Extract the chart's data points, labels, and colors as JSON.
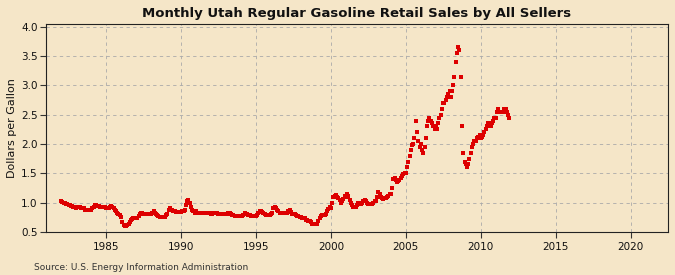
{
  "title": "Monthly Utah Regular Gasoline Retail Sales by All Sellers",
  "ylabel": "Dollars per Gallon",
  "source_text": "Source: U.S. Energy Information Administration",
  "xlim": [
    1981.0,
    2022.5
  ],
  "ylim": [
    0.5,
    4.05
  ],
  "yticks": [
    0.5,
    1.0,
    1.5,
    2.0,
    2.5,
    3.0,
    3.5,
    4.0
  ],
  "xticks": [
    1985,
    1990,
    1995,
    2000,
    2005,
    2010,
    2015,
    2020
  ],
  "background_color": "#f5e6c8",
  "plot_bg_color": "#f5e6c8",
  "marker_color": "#dd0000",
  "data_points": [
    [
      1982.0,
      1.02
    ],
    [
      1982.08,
      1.01
    ],
    [
      1982.17,
      1.0
    ],
    [
      1982.25,
      0.99
    ],
    [
      1982.33,
      0.98
    ],
    [
      1982.42,
      0.97
    ],
    [
      1982.5,
      0.96
    ],
    [
      1982.58,
      0.95
    ],
    [
      1982.67,
      0.94
    ],
    [
      1982.75,
      0.94
    ],
    [
      1982.83,
      0.93
    ],
    [
      1982.92,
      0.92
    ],
    [
      1983.0,
      0.91
    ],
    [
      1983.08,
      0.92
    ],
    [
      1983.17,
      0.93
    ],
    [
      1983.25,
      0.93
    ],
    [
      1983.33,
      0.91
    ],
    [
      1983.42,
      0.9
    ],
    [
      1983.5,
      0.9
    ],
    [
      1983.58,
      0.88
    ],
    [
      1983.67,
      0.87
    ],
    [
      1983.75,
      0.87
    ],
    [
      1983.83,
      0.87
    ],
    [
      1983.92,
      0.87
    ],
    [
      1984.0,
      0.88
    ],
    [
      1984.08,
      0.9
    ],
    [
      1984.17,
      0.93
    ],
    [
      1984.25,
      0.95
    ],
    [
      1984.33,
      0.95
    ],
    [
      1984.42,
      0.94
    ],
    [
      1984.5,
      0.94
    ],
    [
      1984.58,
      0.93
    ],
    [
      1984.67,
      0.92
    ],
    [
      1984.75,
      0.92
    ],
    [
      1984.83,
      0.92
    ],
    [
      1984.92,
      0.92
    ],
    [
      1985.0,
      0.91
    ],
    [
      1985.08,
      0.9
    ],
    [
      1985.17,
      0.9
    ],
    [
      1985.25,
      0.92
    ],
    [
      1985.33,
      0.94
    ],
    [
      1985.42,
      0.93
    ],
    [
      1985.5,
      0.91
    ],
    [
      1985.58,
      0.88
    ],
    [
      1985.67,
      0.85
    ],
    [
      1985.75,
      0.82
    ],
    [
      1985.83,
      0.8
    ],
    [
      1985.92,
      0.79
    ],
    [
      1986.0,
      0.75
    ],
    [
      1986.08,
      0.66
    ],
    [
      1986.17,
      0.62
    ],
    [
      1986.25,
      0.6
    ],
    [
      1986.33,
      0.6
    ],
    [
      1986.42,
      0.62
    ],
    [
      1986.5,
      0.64
    ],
    [
      1986.58,
      0.67
    ],
    [
      1986.67,
      0.7
    ],
    [
      1986.75,
      0.72
    ],
    [
      1986.83,
      0.73
    ],
    [
      1986.92,
      0.74
    ],
    [
      1987.0,
      0.73
    ],
    [
      1987.08,
      0.74
    ],
    [
      1987.17,
      0.77
    ],
    [
      1987.25,
      0.8
    ],
    [
      1987.33,
      0.82
    ],
    [
      1987.42,
      0.82
    ],
    [
      1987.5,
      0.81
    ],
    [
      1987.58,
      0.8
    ],
    [
      1987.67,
      0.8
    ],
    [
      1987.75,
      0.8
    ],
    [
      1987.83,
      0.8
    ],
    [
      1987.92,
      0.8
    ],
    [
      1988.0,
      0.8
    ],
    [
      1988.08,
      0.82
    ],
    [
      1988.17,
      0.85
    ],
    [
      1988.25,
      0.83
    ],
    [
      1988.33,
      0.8
    ],
    [
      1988.42,
      0.78
    ],
    [
      1988.5,
      0.77
    ],
    [
      1988.58,
      0.76
    ],
    [
      1988.67,
      0.76
    ],
    [
      1988.75,
      0.76
    ],
    [
      1988.83,
      0.76
    ],
    [
      1988.92,
      0.76
    ],
    [
      1989.0,
      0.78
    ],
    [
      1989.08,
      0.8
    ],
    [
      1989.17,
      0.87
    ],
    [
      1989.25,
      0.9
    ],
    [
      1989.33,
      0.88
    ],
    [
      1989.42,
      0.87
    ],
    [
      1989.5,
      0.86
    ],
    [
      1989.58,
      0.85
    ],
    [
      1989.67,
      0.84
    ],
    [
      1989.75,
      0.84
    ],
    [
      1989.83,
      0.84
    ],
    [
      1989.92,
      0.84
    ],
    [
      1990.0,
      0.84
    ],
    [
      1990.08,
      0.85
    ],
    [
      1990.17,
      0.85
    ],
    [
      1990.25,
      0.88
    ],
    [
      1990.33,
      0.96
    ],
    [
      1990.42,
      1.03
    ],
    [
      1990.5,
      1.04
    ],
    [
      1990.58,
      1.0
    ],
    [
      1990.67,
      0.93
    ],
    [
      1990.75,
      0.88
    ],
    [
      1990.83,
      0.85
    ],
    [
      1990.92,
      0.83
    ],
    [
      1991.0,
      0.85
    ],
    [
      1991.08,
      0.83
    ],
    [
      1991.17,
      0.82
    ],
    [
      1991.25,
      0.83
    ],
    [
      1991.33,
      0.83
    ],
    [
      1991.42,
      0.83
    ],
    [
      1991.5,
      0.83
    ],
    [
      1991.58,
      0.82
    ],
    [
      1991.67,
      0.82
    ],
    [
      1991.75,
      0.82
    ],
    [
      1991.83,
      0.82
    ],
    [
      1991.92,
      0.82
    ],
    [
      1992.0,
      0.8
    ],
    [
      1992.08,
      0.8
    ],
    [
      1992.17,
      0.82
    ],
    [
      1992.25,
      0.83
    ],
    [
      1992.33,
      0.83
    ],
    [
      1992.42,
      0.82
    ],
    [
      1992.5,
      0.8
    ],
    [
      1992.58,
      0.8
    ],
    [
      1992.67,
      0.8
    ],
    [
      1992.75,
      0.8
    ],
    [
      1992.83,
      0.8
    ],
    [
      1992.92,
      0.8
    ],
    [
      1993.0,
      0.8
    ],
    [
      1993.08,
      0.8
    ],
    [
      1993.17,
      0.82
    ],
    [
      1993.25,
      0.83
    ],
    [
      1993.33,
      0.81
    ],
    [
      1993.42,
      0.79
    ],
    [
      1993.5,
      0.78
    ],
    [
      1993.58,
      0.77
    ],
    [
      1993.67,
      0.77
    ],
    [
      1993.75,
      0.77
    ],
    [
      1993.83,
      0.77
    ],
    [
      1993.92,
      0.77
    ],
    [
      1994.0,
      0.77
    ],
    [
      1994.08,
      0.77
    ],
    [
      1994.17,
      0.79
    ],
    [
      1994.25,
      0.82
    ],
    [
      1994.33,
      0.81
    ],
    [
      1994.42,
      0.8
    ],
    [
      1994.5,
      0.79
    ],
    [
      1994.58,
      0.78
    ],
    [
      1994.67,
      0.77
    ],
    [
      1994.75,
      0.77
    ],
    [
      1994.83,
      0.77
    ],
    [
      1994.92,
      0.77
    ],
    [
      1995.0,
      0.77
    ],
    [
      1995.08,
      0.78
    ],
    [
      1995.17,
      0.82
    ],
    [
      1995.25,
      0.86
    ],
    [
      1995.33,
      0.85
    ],
    [
      1995.42,
      0.84
    ],
    [
      1995.5,
      0.82
    ],
    [
      1995.58,
      0.8
    ],
    [
      1995.67,
      0.79
    ],
    [
      1995.75,
      0.79
    ],
    [
      1995.83,
      0.79
    ],
    [
      1995.92,
      0.79
    ],
    [
      1996.0,
      0.8
    ],
    [
      1996.08,
      0.83
    ],
    [
      1996.17,
      0.9
    ],
    [
      1996.25,
      0.92
    ],
    [
      1996.33,
      0.9
    ],
    [
      1996.42,
      0.87
    ],
    [
      1996.5,
      0.85
    ],
    [
      1996.58,
      0.83
    ],
    [
      1996.67,
      0.82
    ],
    [
      1996.75,
      0.82
    ],
    [
      1996.83,
      0.82
    ],
    [
      1996.92,
      0.82
    ],
    [
      1997.0,
      0.82
    ],
    [
      1997.08,
      0.83
    ],
    [
      1997.17,
      0.86
    ],
    [
      1997.25,
      0.87
    ],
    [
      1997.33,
      0.84
    ],
    [
      1997.42,
      0.81
    ],
    [
      1997.5,
      0.8
    ],
    [
      1997.58,
      0.8
    ],
    [
      1997.67,
      0.78
    ],
    [
      1997.75,
      0.77
    ],
    [
      1997.83,
      0.77
    ],
    [
      1997.92,
      0.76
    ],
    [
      1998.0,
      0.76
    ],
    [
      1998.08,
      0.74
    ],
    [
      1998.17,
      0.73
    ],
    [
      1998.25,
      0.73
    ],
    [
      1998.33,
      0.71
    ],
    [
      1998.42,
      0.7
    ],
    [
      1998.5,
      0.69
    ],
    [
      1998.58,
      0.68
    ],
    [
      1998.67,
      0.66
    ],
    [
      1998.75,
      0.64
    ],
    [
      1998.83,
      0.63
    ],
    [
      1998.92,
      0.63
    ],
    [
      1999.0,
      0.63
    ],
    [
      1999.08,
      0.64
    ],
    [
      1999.17,
      0.69
    ],
    [
      1999.25,
      0.74
    ],
    [
      1999.33,
      0.77
    ],
    [
      1999.42,
      0.78
    ],
    [
      1999.5,
      0.78
    ],
    [
      1999.58,
      0.79
    ],
    [
      1999.67,
      0.81
    ],
    [
      1999.75,
      0.85
    ],
    [
      1999.83,
      0.89
    ],
    [
      1999.92,
      0.92
    ],
    [
      2000.0,
      0.91
    ],
    [
      2000.08,
      0.99
    ],
    [
      2000.17,
      1.09
    ],
    [
      2000.25,
      1.12
    ],
    [
      2000.33,
      1.13
    ],
    [
      2000.42,
      1.1
    ],
    [
      2000.5,
      1.08
    ],
    [
      2000.58,
      1.05
    ],
    [
      2000.67,
      1.0
    ],
    [
      2000.75,
      1.03
    ],
    [
      2000.83,
      1.06
    ],
    [
      2000.92,
      1.12
    ],
    [
      2001.0,
      1.1
    ],
    [
      2001.08,
      1.15
    ],
    [
      2001.17,
      1.12
    ],
    [
      2001.25,
      1.05
    ],
    [
      2001.33,
      1.0
    ],
    [
      2001.42,
      0.96
    ],
    [
      2001.5,
      0.93
    ],
    [
      2001.58,
      0.92
    ],
    [
      2001.67,
      0.93
    ],
    [
      2001.75,
      0.96
    ],
    [
      2001.83,
      0.99
    ],
    [
      2001.92,
      0.99
    ],
    [
      2002.0,
      0.97
    ],
    [
      2002.08,
      0.99
    ],
    [
      2002.17,
      1.02
    ],
    [
      2002.25,
      1.04
    ],
    [
      2002.33,
      1.02
    ],
    [
      2002.42,
      1.0
    ],
    [
      2002.5,
      0.98
    ],
    [
      2002.58,
      0.97
    ],
    [
      2002.67,
      0.97
    ],
    [
      2002.75,
      0.98
    ],
    [
      2002.83,
      1.0
    ],
    [
      2002.92,
      1.02
    ],
    [
      2003.0,
      1.02
    ],
    [
      2003.08,
      1.1
    ],
    [
      2003.17,
      1.18
    ],
    [
      2003.25,
      1.15
    ],
    [
      2003.33,
      1.1
    ],
    [
      2003.42,
      1.07
    ],
    [
      2003.5,
      1.06
    ],
    [
      2003.58,
      1.07
    ],
    [
      2003.67,
      1.08
    ],
    [
      2003.75,
      1.1
    ],
    [
      2003.83,
      1.12
    ],
    [
      2003.92,
      1.14
    ],
    [
      2004.0,
      1.15
    ],
    [
      2004.08,
      1.25
    ],
    [
      2004.17,
      1.4
    ],
    [
      2004.25,
      1.42
    ],
    [
      2004.33,
      1.38
    ],
    [
      2004.42,
      1.35
    ],
    [
      2004.5,
      1.36
    ],
    [
      2004.58,
      1.38
    ],
    [
      2004.67,
      1.42
    ],
    [
      2004.75,
      1.45
    ],
    [
      2004.83,
      1.48
    ],
    [
      2004.92,
      1.5
    ],
    [
      2005.0,
      1.5
    ],
    [
      2005.08,
      1.6
    ],
    [
      2005.17,
      1.7
    ],
    [
      2005.25,
      1.8
    ],
    [
      2005.33,
      1.9
    ],
    [
      2005.42,
      1.98
    ],
    [
      2005.5,
      2.0
    ],
    [
      2005.58,
      2.1
    ],
    [
      2005.67,
      2.4
    ],
    [
      2005.75,
      2.2
    ],
    [
      2005.83,
      2.05
    ],
    [
      2005.92,
      1.95
    ],
    [
      2006.0,
      2.0
    ],
    [
      2006.08,
      1.9
    ],
    [
      2006.17,
      1.85
    ],
    [
      2006.25,
      1.95
    ],
    [
      2006.33,
      2.1
    ],
    [
      2006.42,
      2.3
    ],
    [
      2006.5,
      2.4
    ],
    [
      2006.58,
      2.45
    ],
    [
      2006.67,
      2.4
    ],
    [
      2006.75,
      2.35
    ],
    [
      2006.83,
      2.3
    ],
    [
      2006.92,
      2.25
    ],
    [
      2007.0,
      2.3
    ],
    [
      2007.08,
      2.25
    ],
    [
      2007.17,
      2.35
    ],
    [
      2007.25,
      2.45
    ],
    [
      2007.33,
      2.5
    ],
    [
      2007.42,
      2.6
    ],
    [
      2007.5,
      2.7
    ],
    [
      2007.58,
      2.7
    ],
    [
      2007.67,
      2.75
    ],
    [
      2007.75,
      2.8
    ],
    [
      2007.83,
      2.85
    ],
    [
      2007.92,
      2.9
    ],
    [
      2008.0,
      2.8
    ],
    [
      2008.08,
      2.9
    ],
    [
      2008.17,
      3.0
    ],
    [
      2008.25,
      3.15
    ],
    [
      2008.33,
      3.4
    ],
    [
      2008.42,
      3.55
    ],
    [
      2008.5,
      3.65
    ],
    [
      2008.58,
      3.6
    ],
    [
      2008.67,
      3.15
    ],
    [
      2008.75,
      2.3
    ],
    [
      2008.83,
      1.85
    ],
    [
      2008.92,
      1.7
    ],
    [
      2009.0,
      1.65
    ],
    [
      2009.08,
      1.6
    ],
    [
      2009.17,
      1.65
    ],
    [
      2009.25,
      1.75
    ],
    [
      2009.33,
      1.85
    ],
    [
      2009.42,
      1.95
    ],
    [
      2009.5,
      2.0
    ],
    [
      2009.58,
      2.05
    ],
    [
      2009.67,
      2.05
    ],
    [
      2009.75,
      2.1
    ],
    [
      2009.83,
      2.12
    ],
    [
      2009.92,
      2.15
    ],
    [
      2010.0,
      2.1
    ],
    [
      2010.08,
      2.12
    ],
    [
      2010.17,
      2.15
    ],
    [
      2010.25,
      2.2
    ],
    [
      2010.33,
      2.25
    ],
    [
      2010.42,
      2.3
    ],
    [
      2010.5,
      2.35
    ],
    [
      2010.58,
      2.35
    ],
    [
      2010.67,
      2.3
    ],
    [
      2010.75,
      2.35
    ],
    [
      2010.83,
      2.4
    ],
    [
      2010.92,
      2.45
    ],
    [
      2011.0,
      2.45
    ],
    [
      2011.08,
      2.55
    ],
    [
      2011.17,
      2.6
    ],
    [
      2011.25,
      2.55
    ],
    [
      2011.33,
      2.55
    ],
    [
      2011.42,
      2.55
    ],
    [
      2011.5,
      2.55
    ],
    [
      2011.58,
      2.6
    ],
    [
      2011.67,
      2.6
    ],
    [
      2011.75,
      2.55
    ],
    [
      2011.83,
      2.5
    ],
    [
      2011.92,
      2.45
    ]
  ]
}
